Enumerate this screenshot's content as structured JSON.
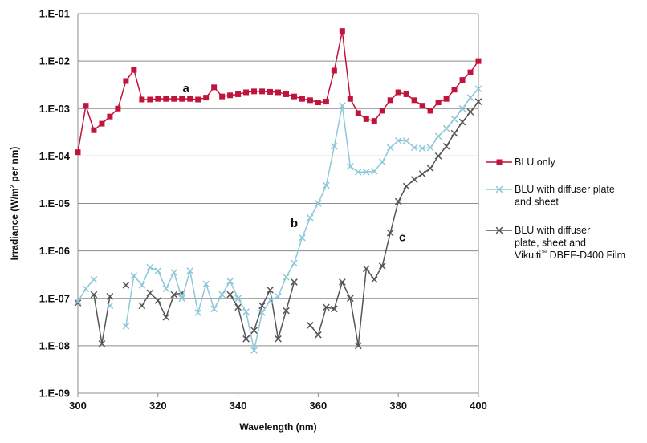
{
  "chart_data": {
    "type": "line",
    "xlabel": "Wavelength (nm)",
    "ylabel_parts": [
      "Irradiance (W/m",
      "2",
      " per nm)"
    ],
    "xlim": [
      300,
      400
    ],
    "ylim": [
      1e-09,
      0.1
    ],
    "y_scale": "log",
    "grid": "horizontal",
    "legend_position": "right",
    "x_ticks": [
      300,
      320,
      340,
      360,
      380,
      400
    ],
    "y_ticks": [
      {
        "value": 0.1,
        "label": "1.E-01"
      },
      {
        "value": 0.01,
        "label": "1.E-02"
      },
      {
        "value": 0.001,
        "label": "1.E-03"
      },
      {
        "value": 0.0001,
        "label": "1.E-04"
      },
      {
        "value": 1e-05,
        "label": "1.E-05"
      },
      {
        "value": 1e-06,
        "label": "1.E-06"
      },
      {
        "value": 1e-07,
        "label": "1.E-07"
      },
      {
        "value": 1e-08,
        "label": "1.E-08"
      },
      {
        "value": 1e-09,
        "label": "1.E-09"
      }
    ],
    "series": [
      {
        "legend_lines": [
          "BLU only"
        ],
        "color": "#c0143c",
        "marker": "square",
        "annotation": {
          "text": "a",
          "x": 327,
          "y": 0.0022
        },
        "points": [
          [
            300,
            0.00012
          ],
          [
            302,
            0.00115
          ],
          [
            304,
            0.00035
          ],
          [
            306,
            0.00048
          ],
          [
            308,
            0.00068
          ],
          [
            310,
            0.001
          ],
          [
            312,
            0.0038
          ],
          [
            314,
            0.0065
          ],
          [
            316,
            0.00155
          ],
          [
            318,
            0.00155
          ],
          [
            320,
            0.0016
          ],
          [
            322,
            0.0016
          ],
          [
            324,
            0.0016
          ],
          [
            326,
            0.0016
          ],
          [
            328,
            0.0016
          ],
          [
            330,
            0.00155
          ],
          [
            332,
            0.0017
          ],
          [
            334,
            0.0028
          ],
          [
            336,
            0.0018
          ],
          [
            338,
            0.0019
          ],
          [
            340,
            0.002
          ],
          [
            342,
            0.0022
          ],
          [
            344,
            0.0023
          ],
          [
            346,
            0.0023
          ],
          [
            348,
            0.00225
          ],
          [
            350,
            0.0022
          ],
          [
            352,
            0.002
          ],
          [
            354,
            0.0018
          ],
          [
            356,
            0.0016
          ],
          [
            358,
            0.0015
          ],
          [
            360,
            0.00135
          ],
          [
            362,
            0.0014
          ],
          [
            364,
            0.0063
          ],
          [
            366,
            0.043
          ],
          [
            368,
            0.0016
          ],
          [
            370,
            0.0008
          ],
          [
            372,
            0.0006
          ],
          [
            374,
            0.00055
          ],
          [
            376,
            0.0009
          ],
          [
            378,
            0.0015
          ],
          [
            380,
            0.0022
          ],
          [
            382,
            0.002
          ],
          [
            384,
            0.0015
          ],
          [
            386,
            0.00115
          ],
          [
            388,
            0.0009
          ],
          [
            390,
            0.00135
          ],
          [
            392,
            0.0016
          ],
          [
            394,
            0.0025
          ],
          [
            396,
            0.004
          ],
          [
            398,
            0.0058
          ],
          [
            400,
            0.01
          ]
        ]
      },
      {
        "legend_lines": [
          "BLU with diffuser plate",
          "and sheet"
        ],
        "color": "#8ec8d8",
        "marker": "x",
        "annotation": {
          "text": "b",
          "x": 354,
          "y": 3.2e-06
        },
        "points": [
          [
            300,
            8.5e-08
          ],
          [
            302,
            1.6e-07
          ],
          [
            304,
            2.5e-07
          ],
          [
            306,
            null
          ],
          [
            308,
            7e-08
          ],
          [
            310,
            null
          ],
          [
            312,
            2.6e-08
          ],
          [
            314,
            3e-07
          ],
          [
            316,
            1.9e-07
          ],
          [
            318,
            4.5e-07
          ],
          [
            320,
            3.8e-07
          ],
          [
            322,
            1.6e-07
          ],
          [
            324,
            3.5e-07
          ],
          [
            326,
            1e-07
          ],
          [
            328,
            3.8e-07
          ],
          [
            330,
            5e-08
          ],
          [
            332,
            2e-07
          ],
          [
            334,
            6e-08
          ],
          [
            336,
            1.2e-07
          ],
          [
            338,
            2.3e-07
          ],
          [
            340,
            1e-07
          ],
          [
            342,
            5.2e-08
          ],
          [
            344,
            8e-09
          ],
          [
            346,
            5e-08
          ],
          [
            348,
            9e-08
          ],
          [
            350,
            1.1e-07
          ],
          [
            352,
            2.8e-07
          ],
          [
            354,
            5.5e-07
          ],
          [
            356,
            1.9e-06
          ],
          [
            358,
            5e-06
          ],
          [
            360,
            1e-05
          ],
          [
            362,
            2.4e-05
          ],
          [
            364,
            0.00016
          ],
          [
            366,
            0.00115
          ],
          [
            368,
            6e-05
          ],
          [
            370,
            4.6e-05
          ],
          [
            372,
            4.6e-05
          ],
          [
            374,
            4.8e-05
          ],
          [
            376,
            7.5e-05
          ],
          [
            378,
            0.00015
          ],
          [
            380,
            0.00021
          ],
          [
            382,
            0.00021
          ],
          [
            384,
            0.00015
          ],
          [
            386,
            0.000145
          ],
          [
            388,
            0.00015
          ],
          [
            390,
            0.00026
          ],
          [
            392,
            0.00038
          ],
          [
            394,
            0.0006
          ],
          [
            396,
            0.001
          ],
          [
            398,
            0.0017
          ],
          [
            400,
            0.0026
          ]
        ]
      },
      {
        "legend_lines": [
          "BLU with diffuser",
          "plate, sheet and",
          "Vikuiti|™| DBEF-D400 Film"
        ],
        "color": "#555555",
        "marker": "x",
        "annotation": {
          "text": "c",
          "x": 381,
          "y": 1.6e-06
        },
        "points": [
          [
            300,
            8e-08
          ],
          [
            302,
            null
          ],
          [
            304,
            1.2e-07
          ],
          [
            306,
            1.1e-08
          ],
          [
            308,
            1.1e-07
          ],
          [
            310,
            null
          ],
          [
            312,
            1.9e-07
          ],
          [
            314,
            null
          ],
          [
            316,
            7e-08
          ],
          [
            318,
            1.3e-07
          ],
          [
            320,
            9e-08
          ],
          [
            322,
            4e-08
          ],
          [
            324,
            1.2e-07
          ],
          [
            326,
            1.3e-07
          ],
          [
            328,
            null
          ],
          [
            330,
            null
          ],
          [
            332,
            null
          ],
          [
            334,
            null
          ],
          [
            336,
            null
          ],
          [
            338,
            1.2e-07
          ],
          [
            340,
            6.5e-08
          ],
          [
            342,
            1.4e-08
          ],
          [
            344,
            2.1e-08
          ],
          [
            346,
            7e-08
          ],
          [
            348,
            1.5e-07
          ],
          [
            350,
            1.4e-08
          ],
          [
            352,
            5.5e-08
          ],
          [
            354,
            2.2e-07
          ],
          [
            356,
            null
          ],
          [
            358,
            2.7e-08
          ],
          [
            360,
            1.7e-08
          ],
          [
            362,
            6.5e-08
          ],
          [
            364,
            6e-08
          ],
          [
            366,
            2.2e-07
          ],
          [
            368,
            1e-07
          ],
          [
            370,
            1e-08
          ],
          [
            372,
            4.2e-07
          ],
          [
            374,
            2.5e-07
          ],
          [
            376,
            4.8e-07
          ],
          [
            378,
            2.4e-06
          ],
          [
            380,
            1.1e-05
          ],
          [
            382,
            2.3e-05
          ],
          [
            384,
            3.2e-05
          ],
          [
            386,
            4.2e-05
          ],
          [
            388,
            5.5e-05
          ],
          [
            390,
            0.0001
          ],
          [
            392,
            0.00016
          ],
          [
            394,
            0.0003
          ],
          [
            396,
            0.00052
          ],
          [
            398,
            0.00085
          ],
          [
            400,
            0.0014
          ]
        ]
      }
    ]
  }
}
